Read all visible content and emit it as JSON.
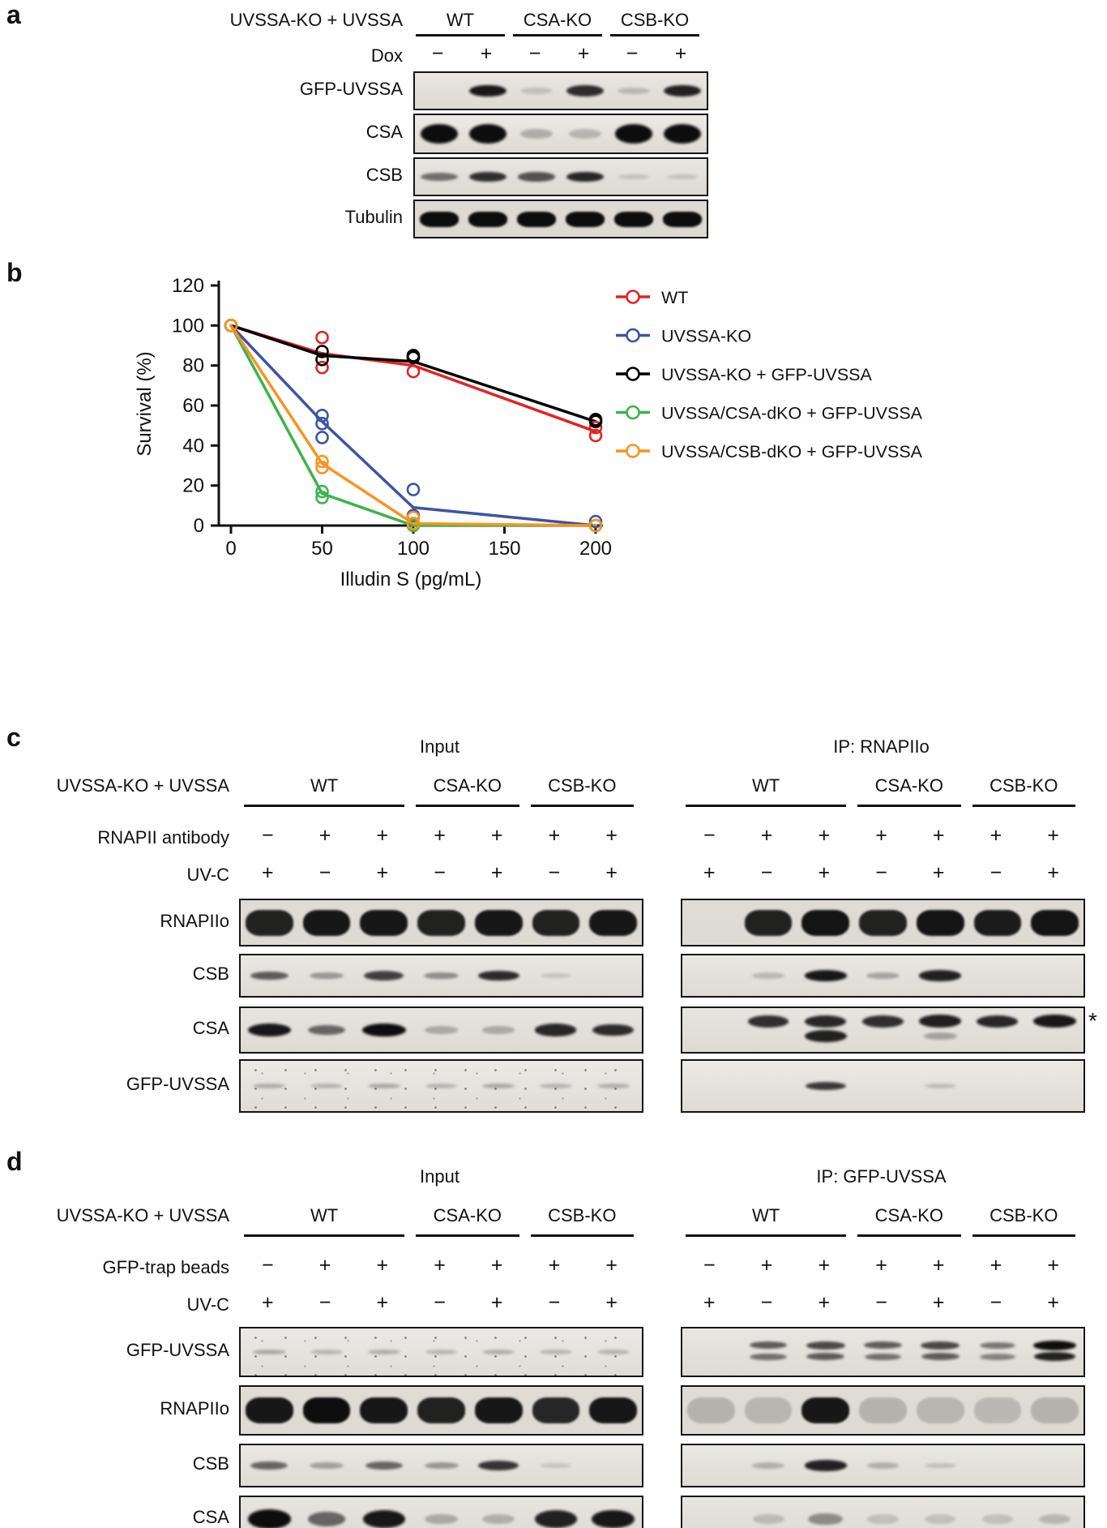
{
  "panel_a": {
    "letter": "a",
    "header": "UVSSA-KO + UVSSA",
    "groups": [
      {
        "label": "WT",
        "lanes": [
          0,
          1
        ]
      },
      {
        "label": "CSA-KO",
        "lanes": [
          2,
          3
        ]
      },
      {
        "label": "CSB-KO",
        "lanes": [
          4,
          5
        ]
      }
    ],
    "dox": {
      "label": "Dox",
      "signs": [
        "−",
        "+",
        "−",
        "+",
        "−",
        "+"
      ]
    },
    "blots": [
      {
        "label": "GFP-UVSSA",
        "bg": "#e9e7e3",
        "band_height": 13,
        "bands": [
          0,
          0.9,
          0.04,
          0.8,
          0.07,
          0.85
        ]
      },
      {
        "label": "CSA",
        "bg": "#edebe7",
        "band_height": 20,
        "bands": [
          1,
          1,
          0.14,
          0.1,
          0.97,
          1
        ]
      },
      {
        "label": "CSB",
        "bg": "#e8e6e2",
        "band_height": 12,
        "bands": [
          0.45,
          0.78,
          0.6,
          0.82,
          0.02,
          0.02
        ]
      },
      {
        "label": "Tubulin",
        "bg": "#ddd9d4",
        "band_height": 19,
        "wide": true,
        "bands": [
          1,
          1,
          1,
          1,
          1,
          1
        ]
      }
    ]
  },
  "panel_b": {
    "letter": "b",
    "chart_data": {
      "type": "line",
      "title": "",
      "xlabel": "Illudin S (pg/mL)",
      "ylabel": "Survival (%)",
      "xlim": [
        0,
        200
      ],
      "ylim": [
        0,
        120
      ],
      "xticks": [
        0,
        50,
        100,
        150,
        200
      ],
      "yticks": [
        0,
        20,
        40,
        60,
        80,
        100,
        120
      ],
      "grid": false,
      "legend_position": "right",
      "series": [
        {
          "name": "WT",
          "color": "#e32322",
          "x": [
            0,
            50,
            100,
            200
          ],
          "y": [
            100,
            86,
            80,
            47
          ],
          "points": [
            [
              0,
              100
            ],
            [
              50,
              79
            ],
            [
              50,
              94
            ],
            [
              100,
              77
            ],
            [
              100,
              84
            ],
            [
              200,
              45
            ],
            [
              200,
              49
            ]
          ]
        },
        {
          "name": "UVSSA-KO",
          "color": "#3b54a4",
          "x": [
            0,
            50,
            100,
            200
          ],
          "y": [
            100,
            52,
            9,
            0
          ],
          "points": [
            [
              0,
              100
            ],
            [
              50,
              44
            ],
            [
              50,
              51
            ],
            [
              50,
              55
            ],
            [
              100,
              5
            ],
            [
              100,
              18
            ],
            [
              200,
              0
            ],
            [
              200,
              2
            ]
          ]
        },
        {
          "name": "UVSSA-KO + GFP-UVSSA",
          "color": "#000000",
          "x": [
            0,
            50,
            100,
            200
          ],
          "y": [
            100,
            85,
            82,
            52
          ],
          "points": [
            [
              0,
              100
            ],
            [
              50,
              83
            ],
            [
              50,
              87
            ],
            [
              100,
              84
            ],
            [
              100,
              85
            ],
            [
              200,
              52
            ],
            [
              200,
              53
            ]
          ]
        },
        {
          "name": "UVSSA/CSA-dKO + GFP-UVSSA",
          "color": "#3cb44a",
          "x": [
            0,
            50,
            100,
            200
          ],
          "y": [
            100,
            16,
            0,
            0
          ],
          "points": [
            [
              0,
              100
            ],
            [
              50,
              14
            ],
            [
              50,
              17
            ],
            [
              100,
              0
            ],
            [
              100,
              1
            ],
            [
              200,
              0
            ]
          ]
        },
        {
          "name": "UVSSA/CSB-dKO + GFP-UVSSA",
          "color": "#f79421",
          "x": [
            0,
            50,
            100,
            200
          ],
          "y": [
            100,
            31,
            1,
            0
          ],
          "points": [
            [
              0,
              100
            ],
            [
              50,
              29
            ],
            [
              50,
              32
            ],
            [
              100,
              1
            ],
            [
              100,
              4
            ],
            [
              200,
              0
            ]
          ]
        }
      ]
    }
  },
  "panel_c": {
    "letter": "c",
    "left_header": "Input",
    "right_header": "IP: RNAPIIo",
    "row_label": "UVSSA-KO + UVSSA",
    "groups": [
      {
        "label": "WT",
        "lanes": [
          0,
          2
        ]
      },
      {
        "label": "CSA-KO",
        "lanes": [
          3,
          4
        ]
      },
      {
        "label": "CSB-KO",
        "lanes": [
          5,
          6
        ]
      }
    ],
    "sign_rows": [
      {
        "label": "RNAPII antibody",
        "signs": [
          "−",
          "+",
          "+",
          "+",
          "+",
          "+",
          "+"
        ]
      },
      {
        "label": "UV-C",
        "signs": [
          "+",
          "−",
          "+",
          "−",
          "+",
          "−",
          "+"
        ]
      }
    ],
    "blots": [
      {
        "label": "RNAPIIo",
        "bg": "#dfdcd7",
        "band_height": 32,
        "wide": true,
        "input": [
          0.85,
          0.9,
          0.9,
          0.85,
          0.9,
          0.85,
          0.9
        ],
        "ip": [
          0,
          0.85,
          0.92,
          0.85,
          0.92,
          0.88,
          0.92
        ]
      },
      {
        "label": "CSB",
        "bg": "#eae8e4",
        "band_height": 12,
        "input": [
          0.55,
          0.25,
          0.7,
          0.3,
          0.8,
          0.02,
          0
        ],
        "ip": [
          0,
          0.08,
          0.9,
          0.18,
          0.85,
          0,
          0
        ]
      },
      {
        "label": "CSA",
        "bg": "#e7e5e1",
        "band_height": 14,
        "marker": "*",
        "input": [
          0.9,
          0.5,
          1,
          0.15,
          0.15,
          0.82,
          0.8
        ],
        "ip": [
          0,
          0.78,
          0.82,
          0.78,
          0.86,
          0.82,
          0.9
        ],
        "ip_offset": 0.3,
        "ip2": [
          0,
          0,
          0.85,
          0,
          0.18,
          0,
          0
        ],
        "ip2_offset": 0.64
      },
      {
        "label": "GFP-UVSSA",
        "bg": "#eceae7",
        "band_height": 10,
        "speckle_input": true,
        "input": [
          0.14,
          0.1,
          0.16,
          0.1,
          0.16,
          0.1,
          0.13
        ],
        "ip": [
          0,
          0,
          0.72,
          0,
          0.06,
          0,
          0
        ]
      }
    ]
  },
  "panel_d": {
    "letter": "d",
    "left_header": "Input",
    "right_header": "IP: GFP-UVSSA",
    "row_label": "UVSSA-KO + UVSSA",
    "groups": [
      {
        "label": "WT",
        "lanes": [
          0,
          2
        ]
      },
      {
        "label": "CSA-KO",
        "lanes": [
          3,
          4
        ]
      },
      {
        "label": "CSB-KO",
        "lanes": [
          5,
          6
        ]
      }
    ],
    "sign_rows": [
      {
        "label": "GFP-trap beads",
        "signs": [
          "−",
          "+",
          "+",
          "+",
          "+",
          "+",
          "+"
        ]
      },
      {
        "label": "UV-C",
        "signs": [
          "+",
          "−",
          "+",
          "−",
          "+",
          "−",
          "+"
        ]
      }
    ],
    "blots": [
      {
        "label": "GFP-UVSSA",
        "bg": "#e9e7e3",
        "band_height": 10,
        "speckle_input": true,
        "input": [
          0.16,
          0.1,
          0.13,
          0.1,
          0.13,
          0.09,
          0.11
        ],
        "ip": [
          0,
          0.55,
          0.65,
          0.55,
          0.65,
          0.42,
          0.95
        ],
        "ip_offset": 0.36,
        "ip2": [
          0,
          0.45,
          0.55,
          0.45,
          0.55,
          0.35,
          0.85
        ],
        "ip2_offset": 0.6
      },
      {
        "label": "RNAPIIo",
        "bg": "#dfdcd7",
        "band_height": 32,
        "wide": true,
        "input": [
          0.9,
          0.95,
          0.9,
          0.85,
          0.9,
          0.82,
          0.9
        ],
        "ip": [
          0.08,
          0.06,
          0.9,
          0.08,
          0.06,
          0.05,
          0.08
        ]
      },
      {
        "label": "CSB",
        "bg": "#eae8e4",
        "band_height": 12,
        "input": [
          0.5,
          0.2,
          0.5,
          0.25,
          0.75,
          0.02,
          0
        ],
        "ip": [
          0,
          0.12,
          0.85,
          0.12,
          0.04,
          0,
          0
        ]
      },
      {
        "label": "CSA",
        "bg": "#e7e5e1",
        "band_height": 20,
        "input": [
          0.97,
          0.5,
          0.9,
          0.15,
          0.12,
          0.85,
          0.9
        ],
        "ip": [
          0,
          0.06,
          0.3,
          0.03,
          0.03,
          0.03,
          0.08
        ]
      }
    ]
  }
}
